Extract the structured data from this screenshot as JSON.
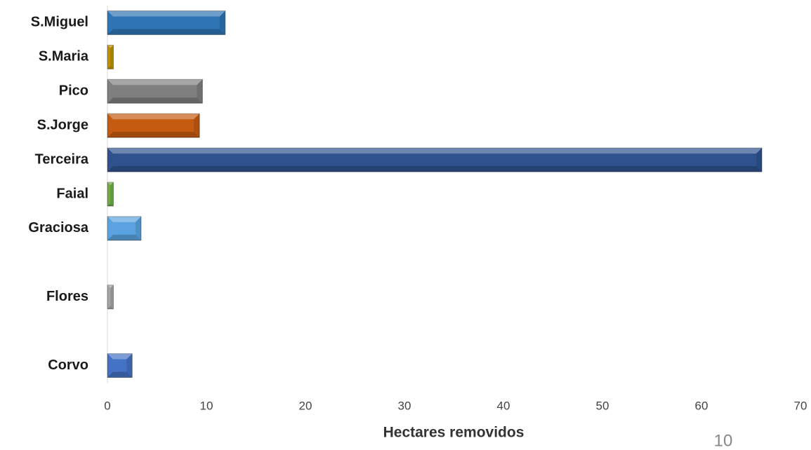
{
  "chart_data": {
    "type": "barh",
    "xlabel": "Hectares removidos",
    "categories": [
      "S.Miguel",
      "S.Maria",
      "Pico",
      "S.Jorge",
      "Terceira",
      "Faial",
      "Graciosa",
      null,
      "Flores",
      null,
      "Corvo"
    ],
    "values": [
      11.9,
      0.6,
      9.6,
      9.3,
      66.1,
      0.6,
      3.4,
      null,
      0.6,
      null,
      2.5
    ],
    "colors": [
      "#2e75b6",
      "#bf9000",
      "#7f7f7f",
      "#c55a11",
      "#2f528f",
      "#70ad47",
      "#5ba3e0",
      null,
      "#a5a5a5",
      null,
      "#4472c4"
    ],
    "xlim": [
      0,
      70
    ],
    "xticks": [
      0,
      10,
      20,
      30,
      40,
      50,
      60,
      70
    ],
    "grid": false
  },
  "page_number": "10"
}
